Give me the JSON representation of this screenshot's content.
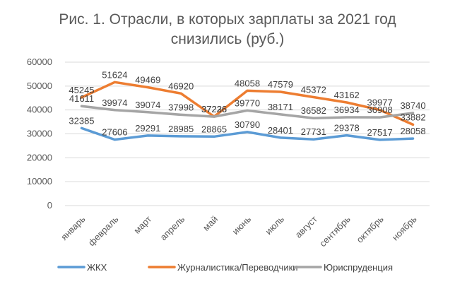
{
  "chart_data": {
    "type": "line",
    "title": "Рис. 1. Отрасли, в которых зарплаты за 2021 год снизились (руб.)",
    "title_lines": [
      "Рис. 1. Отрасли, в которых зарплаты за 2021 год",
      "снизились (руб.)"
    ],
    "categories": [
      "январь",
      "февраль",
      "март",
      "апрель",
      "май",
      "июнь",
      "июль",
      "август",
      "сентябрь",
      "октябрь",
      "ноябрь"
    ],
    "ylim": [
      0,
      60000
    ],
    "yticks": [
      0,
      10000,
      20000,
      30000,
      40000,
      50000,
      60000
    ],
    "grid": true,
    "legend_position": "bottom",
    "series": [
      {
        "name": "ЖКХ",
        "color": "#5B9BD5",
        "values": [
          32385,
          27606,
          29291,
          28985,
          28865,
          30790,
          28401,
          27731,
          29378,
          27517,
          28058
        ]
      },
      {
        "name": "Журналистика/Переводчики",
        "color": "#ED7D31",
        "values": [
          45245,
          51624,
          49469,
          46920,
          37236,
          48058,
          47579,
          45372,
          43162,
          39977,
          33882
        ]
      },
      {
        "name": "Юриспруденция",
        "color": "#A5A5A5",
        "values": [
          41611,
          39974,
          39074,
          37998,
          37226,
          39770,
          38171,
          36582,
          36934,
          36908,
          38740
        ]
      }
    ]
  }
}
